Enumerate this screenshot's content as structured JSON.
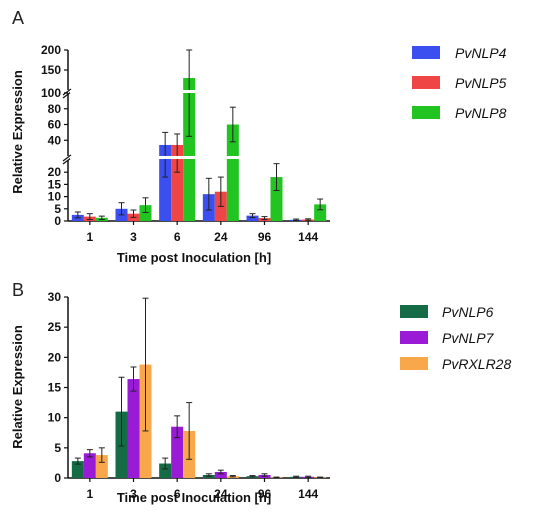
{
  "panels": [
    {
      "letter": "A"
    },
    {
      "letter": "B"
    }
  ],
  "chart_data": [
    {
      "type": "bar",
      "panel": "A",
      "xlabel": "Time post Inoculation [h]",
      "ylabel": "Relative Expression",
      "categories": [
        "1",
        "3",
        "6",
        "24",
        "96",
        "144"
      ],
      "y_axis": "broken",
      "y_segments": [
        {
          "range": [
            0,
            25
          ],
          "ticks": [
            0,
            5,
            10,
            15,
            20
          ]
        },
        {
          "range": [
            20,
            100
          ],
          "ticks": [
            20,
            40,
            60,
            80,
            100
          ]
        },
        {
          "range": [
            100,
            200
          ],
          "ticks": [
            100,
            150,
            200
          ]
        }
      ],
      "series": [
        {
          "name": "PvNLP4",
          "color": "#3b4ef0",
          "values": [
            2.5,
            5,
            34,
            11,
            2.2,
            0.5
          ],
          "errors": [
            1.2,
            2.5,
            16,
            6.5,
            0.8,
            0.3
          ]
        },
        {
          "name": "PvNLP5",
          "color": "#f04545",
          "values": [
            1.8,
            3,
            34,
            12,
            1.2,
            0.6
          ],
          "errors": [
            1.2,
            1.5,
            14,
            6,
            0.6,
            0.3
          ]
        },
        {
          "name": "PvNLP8",
          "color": "#22c422",
          "values": [
            1.3,
            6.5,
            130,
            60,
            18,
            6.8
          ],
          "errors": [
            0.7,
            3,
            85,
            22,
            5.5,
            2.2
          ]
        }
      ],
      "legend_position": "right"
    },
    {
      "type": "bar",
      "panel": "B",
      "xlabel": "Time post Inoculation [h]",
      "ylabel": "Relative Expression",
      "categories": [
        "1",
        "3",
        "6",
        "24",
        "96",
        "144"
      ],
      "ylim": [
        0,
        30
      ],
      "yticks": [
        0,
        5,
        10,
        15,
        20,
        25,
        30
      ],
      "series": [
        {
          "name": "PvNLP6",
          "color": "#146b45",
          "values": [
            2.8,
            11,
            2.4,
            0.5,
            0.3,
            0.2
          ],
          "errors": [
            0.5,
            5.7,
            0.9,
            0.2,
            0.1,
            0.1
          ]
        },
        {
          "name": "PvNLP7",
          "color": "#9a1bd6",
          "values": [
            4.1,
            16.4,
            8.5,
            1.0,
            0.5,
            0.2
          ],
          "errors": [
            0.6,
            2,
            1.8,
            0.3,
            0.2,
            0.1
          ]
        },
        {
          "name": "PvRXLR28",
          "color": "#f8a84a",
          "values": [
            3.8,
            18.8,
            7.8,
            0.3,
            0.1,
            0.1
          ],
          "errors": [
            1.2,
            11,
            4.7,
            0.1,
            0.05,
            0.05
          ]
        }
      ],
      "legend_position": "right"
    }
  ]
}
